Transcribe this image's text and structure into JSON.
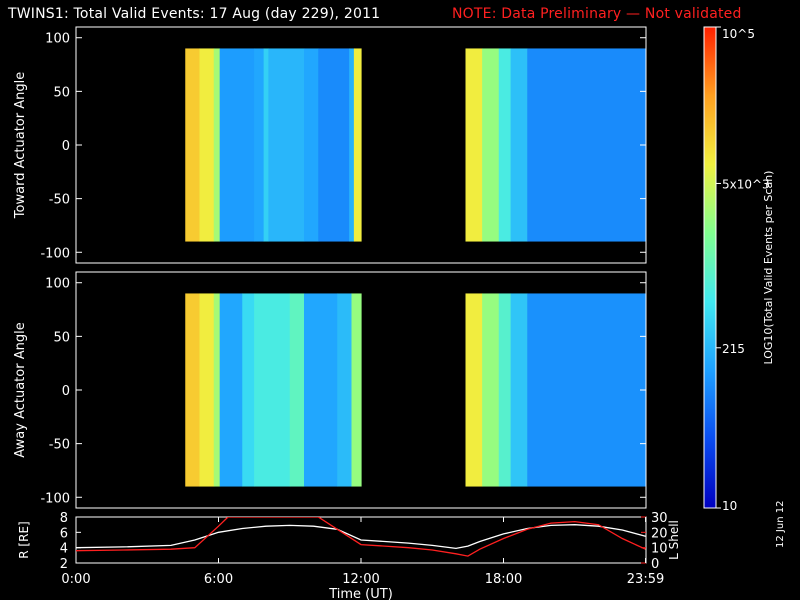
{
  "header": {
    "title": "TWINS1: Total Valid Events: 17 Aug (day 229), 2011",
    "note": "NOTE: Data Preliminary — Not validated",
    "note_color": "#ff2020"
  },
  "date_stamp": "12 Jun 12",
  "colorbar": {
    "label": "LOG10(Total Valid Events per Scan)",
    "scale": "log",
    "range": [
      10,
      100000
    ],
    "tick_labels": [
      "10",
      "215",
      "5x10^3",
      "10^5"
    ],
    "tick_values": [
      10,
      215,
      5000,
      100000
    ],
    "colormap": [
      "#0000c0",
      "#0a4cf0",
      "#1ea0ff",
      "#40e8f0",
      "#80ff90",
      "#f0f040",
      "#ffa020",
      "#ff2000"
    ]
  },
  "chart_data": [
    {
      "type": "heatmap",
      "ylabel": "Toward Actuator Angle",
      "ylim": [
        -110,
        110
      ],
      "yticks": [
        100,
        50,
        0,
        -50,
        -100
      ],
      "xlim": [
        0,
        24
      ],
      "blocks": [
        {
          "start": 4.6,
          "end": 12.0,
          "angle_range": [
            -90,
            90
          ],
          "profile": [
            {
              "t": 4.6,
              "level": 0.78
            },
            {
              "t": 5.2,
              "level": 0.72
            },
            {
              "t": 5.8,
              "level": 0.62
            },
            {
              "t": 6.05,
              "level": 0.28
            },
            {
              "t": 7.5,
              "level": 0.3
            },
            {
              "t": 7.9,
              "level": 0.38
            },
            {
              "t": 8.1,
              "level": 0.33
            },
            {
              "t": 9.6,
              "level": 0.3
            },
            {
              "t": 10.2,
              "level": 0.25
            },
            {
              "t": 11.5,
              "level": 0.32
            },
            {
              "t": 11.7,
              "level": 0.72
            },
            {
              "t": 12.0,
              "level": 0.62
            }
          ]
        },
        {
          "start": 16.4,
          "end": 23.98,
          "angle_range": [
            -90,
            90
          ],
          "profile": [
            {
              "t": 16.4,
              "level": 0.72
            },
            {
              "t": 17.1,
              "level": 0.6
            },
            {
              "t": 17.8,
              "level": 0.45
            },
            {
              "t": 18.3,
              "level": 0.35
            },
            {
              "t": 19.0,
              "level": 0.25
            },
            {
              "t": 23.98,
              "level": 0.22
            }
          ]
        }
      ]
    },
    {
      "type": "heatmap",
      "ylabel": "Away Actuator Angle",
      "ylim": [
        -110,
        110
      ],
      "yticks": [
        100,
        50,
        0,
        -50,
        -100
      ],
      "xlim": [
        0,
        24
      ],
      "blocks": [
        {
          "start": 4.6,
          "end": 12.0,
          "angle_range": [
            -90,
            90
          ],
          "profile": [
            {
              "t": 4.6,
              "level": 0.78
            },
            {
              "t": 5.2,
              "level": 0.72
            },
            {
              "t": 5.8,
              "level": 0.62
            },
            {
              "t": 6.05,
              "level": 0.3
            },
            {
              "t": 7.0,
              "level": 0.4
            },
            {
              "t": 7.5,
              "level": 0.45
            },
            {
              "t": 9.0,
              "level": 0.5
            },
            {
              "t": 9.6,
              "level": 0.3
            },
            {
              "t": 11.0,
              "level": 0.34
            },
            {
              "t": 11.6,
              "level": 0.6
            },
            {
              "t": 12.0,
              "level": 0.55
            }
          ]
        },
        {
          "start": 16.4,
          "end": 23.98,
          "angle_range": [
            -90,
            90
          ],
          "profile": [
            {
              "t": 16.4,
              "level": 0.72
            },
            {
              "t": 17.1,
              "level": 0.6
            },
            {
              "t": 17.8,
              "level": 0.48
            },
            {
              "t": 18.3,
              "level": 0.36
            },
            {
              "t": 19.0,
              "level": 0.26
            },
            {
              "t": 23.98,
              "level": 0.23
            }
          ]
        }
      ]
    },
    {
      "type": "line",
      "xlabel": "Time (UT)",
      "xlim": [
        0,
        24
      ],
      "xtick_labels": [
        "0:00",
        "6:00",
        "12:00",
        "18:00",
        "23:59"
      ],
      "xtick_values": [
        0,
        6,
        12,
        18,
        23.98
      ],
      "ylabel": "R [RE]",
      "ylim": [
        2,
        8
      ],
      "yticks": [
        2,
        4,
        6,
        8
      ],
      "y2label": "L Shell",
      "y2lim": [
        0,
        30
      ],
      "y2ticks": [
        0,
        10,
        20,
        30
      ],
      "series": [
        {
          "axis": "left",
          "color": "#ffffff",
          "x": [
            0,
            2,
            4,
            5,
            6,
            7,
            8,
            9,
            10,
            11,
            12,
            13,
            14,
            15,
            16,
            16.5,
            17,
            18,
            19,
            20,
            21,
            22,
            23,
            23.98
          ],
          "y": [
            4.0,
            4.1,
            4.3,
            5.0,
            6.0,
            6.5,
            6.8,
            6.9,
            6.8,
            6.4,
            5.0,
            4.8,
            4.6,
            4.3,
            3.9,
            4.2,
            4.8,
            5.8,
            6.5,
            6.9,
            7.0,
            6.8,
            6.3,
            5.5
          ]
        },
        {
          "axis": "right",
          "color": "#ff2020",
          "x": [
            0,
            2,
            4,
            5,
            6,
            6.4,
            10.2,
            11,
            12,
            13,
            14,
            15,
            16,
            16.5,
            17,
            18,
            19,
            20,
            21,
            22,
            23,
            23.98
          ],
          "y": [
            8.0,
            8.5,
            9.0,
            10.0,
            24.0,
            30.0,
            30.0,
            22.0,
            12.0,
            11.0,
            10.0,
            8.5,
            6.0,
            4.5,
            9.0,
            16.0,
            22.0,
            26.0,
            27.0,
            25.0,
            16.0,
            9.0
          ]
        }
      ]
    }
  ]
}
